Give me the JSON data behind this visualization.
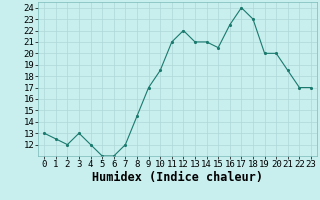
{
  "xlabel": "Humidex (Indice chaleur)",
  "x_values": [
    0,
    1,
    2,
    3,
    4,
    5,
    6,
    7,
    8,
    9,
    10,
    11,
    12,
    13,
    14,
    15,
    16,
    17,
    18,
    19,
    20,
    21,
    22,
    23
  ],
  "y_values": [
    13,
    12.5,
    12,
    13,
    12,
    11,
    11,
    12,
    14.5,
    17,
    18.5,
    21,
    22,
    21,
    21,
    20.5,
    22.5,
    24,
    23,
    20,
    20,
    18.5,
    17,
    17
  ],
  "ylim": [
    11,
    24.5
  ],
  "yticks": [
    12,
    13,
    14,
    15,
    16,
    17,
    18,
    19,
    20,
    21,
    22,
    23,
    24
  ],
  "xticks": [
    0,
    1,
    2,
    3,
    4,
    5,
    6,
    7,
    8,
    9,
    10,
    11,
    12,
    13,
    14,
    15,
    16,
    17,
    18,
    19,
    20,
    21,
    22,
    23
  ],
  "line_color": "#1a7a6e",
  "marker_color": "#1a7a6e",
  "bg_color": "#c8eeee",
  "grid_color": "#b0d8d8",
  "tick_label_fontsize": 6.5,
  "xlabel_fontsize": 8.5
}
